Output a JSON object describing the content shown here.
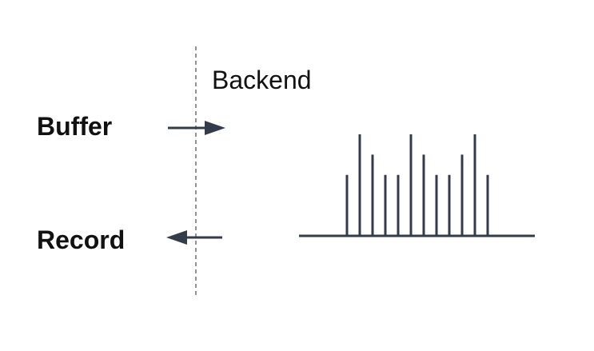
{
  "diagram": {
    "labels": {
      "backend": "Backend",
      "buffer": "Buffer",
      "record": "Record"
    },
    "colors": {
      "stroke": "#343b4a",
      "divider": "#777777",
      "text": "#111111"
    },
    "spectrum": {
      "bar_levels": [
        0.6,
        1.0,
        0.8,
        0.6,
        0.6,
        1.0,
        0.8,
        0.6,
        0.6,
        0.8,
        1.0,
        0.6
      ]
    }
  }
}
